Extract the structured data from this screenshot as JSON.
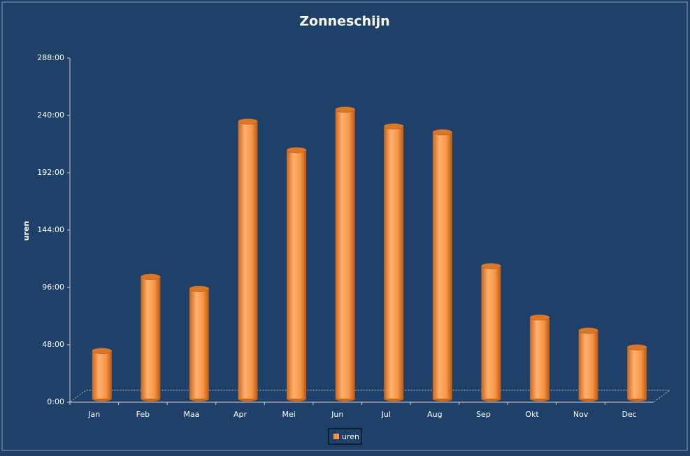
{
  "chart_data": {
    "type": "bar",
    "title": "Zonneschijn",
    "y_label": "uren",
    "categories": [
      "Jan",
      "Feb",
      "Maa",
      "Apr",
      "Mei",
      "Jun",
      "Jul",
      "Aug",
      "Sep",
      "Okt",
      "Nov",
      "Dec"
    ],
    "series": [
      {
        "name": "uren",
        "color": "#f79646",
        "values": [
          40,
          102,
          92,
          232,
          208,
          242,
          228,
          223,
          111,
          68,
          57,
          43
        ]
      }
    ],
    "ylim": [
      0,
      288
    ],
    "yticks": [
      {
        "value": 0,
        "label": "0:00"
      },
      {
        "value": 48,
        "label": "48:00"
      },
      {
        "value": 96,
        "label": "96:00"
      },
      {
        "value": 144,
        "label": "144:00"
      },
      {
        "value": 192,
        "label": "192:00"
      },
      {
        "value": 240,
        "label": "240:00"
      },
      {
        "value": 288,
        "label": "288:00"
      }
    ]
  }
}
